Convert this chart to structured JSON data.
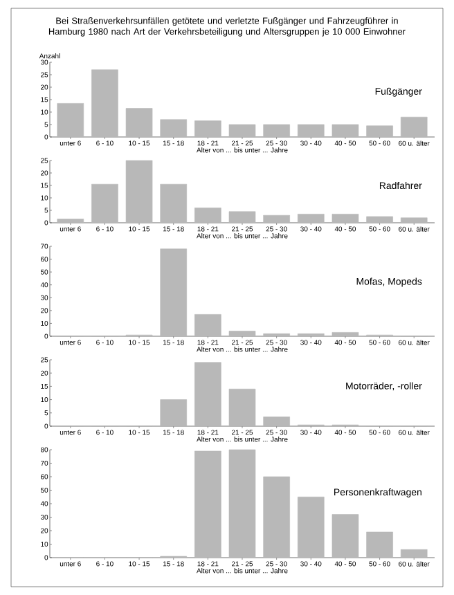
{
  "chart_data": [
    {
      "type": "bar",
      "title": "Bei Straßenverkehrsunfällen getötete und verletzte Fußgänger und Fahrzeugführer in Hamburg 1980 nach Art der Verkehrsbeteiligung und Altersgruppen je 10 000 Einwohner",
      "subtitle": "Fußgänger",
      "ylabel": "Anzahl",
      "xlabel": "Alter von ... bis unter ... Jahre",
      "color": "#b8b8b8",
      "categories": [
        "unter 6",
        "6 - 10",
        "10 - 15",
        "15 - 18",
        "18 - 21",
        "21 - 25",
        "25 - 30",
        "30 - 40",
        "40 - 50",
        "50 - 60",
        "60 u. älter"
      ],
      "values": [
        13.5,
        27,
        11.5,
        7,
        6.5,
        5,
        5,
        5,
        5,
        4.5,
        8
      ],
      "ylim": [
        0,
        30
      ],
      "yticks": [
        0,
        5,
        10,
        15,
        20,
        25,
        30
      ]
    },
    {
      "type": "bar",
      "subtitle": "Radfahrer",
      "xlabel": "Alter von ... bis unter ... Jahre",
      "color": "#b8b8b8",
      "categories": [
        "unter 6",
        "6 - 10",
        "10 - 15",
        "15 - 18",
        "18 - 21",
        "21 - 25",
        "25 - 30",
        "30 - 40",
        "40 - 50",
        "50 - 60",
        "60 u. älter"
      ],
      "values": [
        1.5,
        15.5,
        25,
        15.5,
        6,
        4.5,
        3,
        3.5,
        3.5,
        2.5,
        2
      ],
      "ylim": [
        0,
        25
      ],
      "yticks": [
        0,
        5,
        10,
        15,
        20,
        25
      ]
    },
    {
      "type": "bar",
      "subtitle": "Mofas, Mopeds",
      "xlabel": "Alter von ... bis unter ... Jahre",
      "color": "#b8b8b8",
      "categories": [
        "unter 6",
        "6 - 10",
        "10 - 15",
        "15 - 18",
        "18 - 21",
        "21 - 25",
        "25 - 30",
        "30 - 40",
        "40 - 50",
        "50 - 60",
        "60 u. älter"
      ],
      "values": [
        0,
        0,
        1,
        68,
        17,
        4,
        2,
        2,
        3,
        1,
        0
      ],
      "ylim": [
        0,
        70
      ],
      "yticks": [
        0,
        10,
        20,
        30,
        40,
        50,
        60,
        70
      ]
    },
    {
      "type": "bar",
      "subtitle": "Motorräder, -roller",
      "xlabel": "Alter von ... bis unter ... Jahre",
      "color": "#b8b8b8",
      "categories": [
        "unter 6",
        "6 - 10",
        "10 - 15",
        "15 - 18",
        "18 - 21",
        "21 - 25",
        "25 - 30",
        "30 - 40",
        "40 - 50",
        "50 - 60",
        "60 u. älter"
      ],
      "values": [
        0,
        0,
        0,
        10,
        24,
        14,
        3.5,
        0.5,
        0.5,
        0,
        0
      ],
      "ylim": [
        0,
        25
      ],
      "yticks": [
        0,
        5,
        10,
        15,
        20,
        25
      ]
    },
    {
      "type": "bar",
      "subtitle": "Personenkraftwagen",
      "xlabel": "Alter von ... bis unter ... Jahre",
      "color": "#b8b8b8",
      "categories": [
        "unter 6",
        "6 - 10",
        "10 - 15",
        "15 - 18",
        "18 - 21",
        "21 - 25",
        "25 - 30",
        "30 - 40",
        "40 - 50",
        "50 - 60",
        "60 u. älter"
      ],
      "values": [
        0,
        0,
        0,
        1,
        79,
        80,
        60,
        45,
        32,
        19,
        6
      ],
      "ylim": [
        0,
        80
      ],
      "yticks": [
        0,
        10,
        20,
        30,
        40,
        50,
        60,
        70,
        80
      ]
    }
  ]
}
